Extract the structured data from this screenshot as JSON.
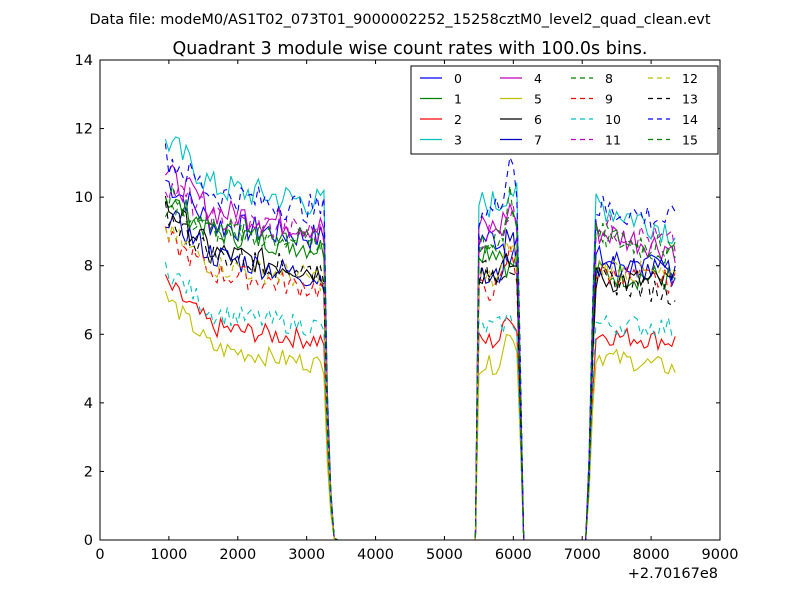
{
  "suptitle": "Data file: modeM0/AS1T02_073T01_9000002252_15258cztM0_level2_quad_clean.evt",
  "chart_data": {
    "type": "line",
    "title": "Quadrant 3 module wise count rates with 100.0s bins.",
    "xlabel": "",
    "ylabel": "",
    "x_offset_text": "+2.70167e8",
    "xlim": [
      0,
      9000
    ],
    "ylim": [
      0,
      14
    ],
    "xticks": [
      0,
      1000,
      2000,
      3000,
      4000,
      5000,
      6000,
      7000,
      8000,
      9000
    ],
    "yticks": [
      0,
      2,
      4,
      6,
      8,
      10,
      12,
      14
    ],
    "grid": false,
    "legend": {
      "placement": "top-right",
      "columns": 4
    },
    "segments": [
      {
        "start": 950,
        "end": 3450
      },
      {
        "start": 5450,
        "end": 6150
      },
      {
        "start": 7050,
        "end": 8350
      }
    ],
    "series": [
      {
        "name": "0",
        "color": "#0000ff",
        "dash": "solid",
        "values": [
          10.5,
          9.2,
          8.8,
          8.5,
          8.2,
          7.8
        ]
      },
      {
        "name": "1",
        "color": "#008000",
        "dash": "solid",
        "values": [
          10.0,
          9.0,
          8.5,
          8.0,
          7.8,
          7.6
        ]
      },
      {
        "name": "2",
        "color": "#ff0000",
        "dash": "solid",
        "values": [
          7.5,
          6.2,
          5.8,
          6.5,
          6.0,
          5.8
        ]
      },
      {
        "name": "3",
        "color": "#00bfbf",
        "dash": "solid",
        "values": [
          11.7,
          10.3,
          9.8,
          10.2,
          9.8,
          9.0
        ]
      },
      {
        "name": "4",
        "color": "#bf00bf",
        "dash": "solid",
        "values": [
          10.7,
          9.6,
          9.1,
          9.6,
          9.0,
          8.5
        ]
      },
      {
        "name": "5",
        "color": "#bfbf00",
        "dash": "solid",
        "values": [
          7.1,
          5.6,
          5.1,
          6.0,
          5.4,
          5.0
        ]
      },
      {
        "name": "6",
        "color": "#000000",
        "dash": "solid",
        "values": [
          9.8,
          8.4,
          7.8,
          8.0,
          7.6,
          7.5
        ]
      },
      {
        "name": "7",
        "color": "#0000bf",
        "dash": "solid",
        "values": [
          9.5,
          8.3,
          7.6,
          8.8,
          8.0,
          7.8
        ]
      },
      {
        "name": "8",
        "color": "#008000",
        "dash": "dashed",
        "values": [
          9.8,
          9.0,
          8.7,
          9.5,
          9.1,
          8.4
        ]
      },
      {
        "name": "9",
        "color": "#ff0000",
        "dash": "dashed",
        "values": [
          8.8,
          7.8,
          7.3,
          8.2,
          7.8,
          7.5
        ]
      },
      {
        "name": "10",
        "color": "#00bfbf",
        "dash": "dashed",
        "values": [
          8.0,
          6.6,
          6.2,
          6.4,
          6.3,
          6.2
        ]
      },
      {
        "name": "11",
        "color": "#bf00bf",
        "dash": "dashed",
        "values": [
          10.4,
          9.4,
          8.9,
          9.5,
          9.2,
          8.6
        ]
      },
      {
        "name": "12",
        "color": "#bfbf00",
        "dash": "dashed",
        "values": [
          9.0,
          8.0,
          7.6,
          8.5,
          8.0,
          7.6
        ]
      },
      {
        "name": "13",
        "color": "#000000",
        "dash": "dashed",
        "values": [
          9.5,
          8.3,
          7.8,
          8.0,
          7.6,
          7.2
        ]
      },
      {
        "name": "14",
        "color": "#0000ff",
        "dash": "dashed",
        "values": [
          11.2,
          10.1,
          9.6,
          11.0,
          9.7,
          9.3
        ]
      },
      {
        "name": "15",
        "color": "#008000",
        "dash": "dashed",
        "values": [
          10.1,
          9.1,
          8.6,
          9.8,
          8.9,
          8.3
        ]
      }
    ]
  }
}
